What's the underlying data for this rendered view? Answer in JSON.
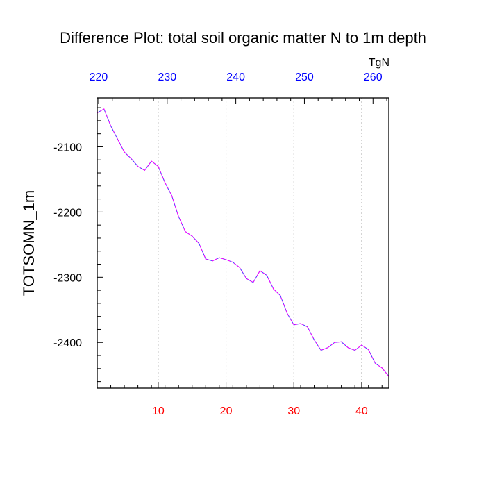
{
  "chart_data": {
    "type": "line",
    "title": "Difference Plot: total soil organic matter N to 1m depth",
    "ylabel": "TOTSOMN_1m",
    "top_axis_units": "TgN",
    "xlim": [
      1,
      44
    ],
    "ylim": [
      -2470,
      -2025
    ],
    "bottom_ticks": [
      10,
      20,
      30,
      40
    ],
    "left_ticks": [
      -2100,
      -2200,
      -2300,
      -2400
    ],
    "top_axis_xlim": [
      219.8,
      262.3
    ],
    "top_ticks": [
      220,
      230,
      240,
      250,
      260
    ],
    "grid": "vertical dashed",
    "colors": {
      "bottom_tick_labels": "#ff0000",
      "top_tick_labels": "#0000ff",
      "series_line_1": "#ff00ff",
      "series_line_2": "#3c3cff",
      "grid": "#b4b4b4"
    },
    "series": [
      {
        "x": [
          1,
          2,
          3,
          4,
          5,
          6,
          7,
          8,
          9,
          10,
          11,
          12,
          13,
          14,
          15,
          16,
          17,
          18,
          19,
          20,
          21,
          22,
          23,
          24,
          25,
          26,
          27,
          28,
          29,
          30,
          31,
          32,
          33,
          34,
          35,
          36,
          37,
          38,
          39,
          40,
          41,
          42,
          43,
          44
        ],
        "values": [
          -2048,
          -2042,
          -2068,
          -2088,
          -2108,
          -2118,
          -2130,
          -2136,
          -2122,
          -2130,
          -2155,
          -2175,
          -2207,
          -2230,
          -2237,
          -2248,
          -2272,
          -2275,
          -2270,
          -2273,
          -2277,
          -2285,
          -2302,
          -2308,
          -2290,
          -2297,
          -2318,
          -2328,
          -2355,
          -2373,
          -2371,
          -2376,
          -2396,
          -2412,
          -2408,
          -2400,
          -2399,
          -2408,
          -2412,
          -2404,
          -2411,
          -2432,
          -2439,
          -2452
        ]
      }
    ]
  }
}
